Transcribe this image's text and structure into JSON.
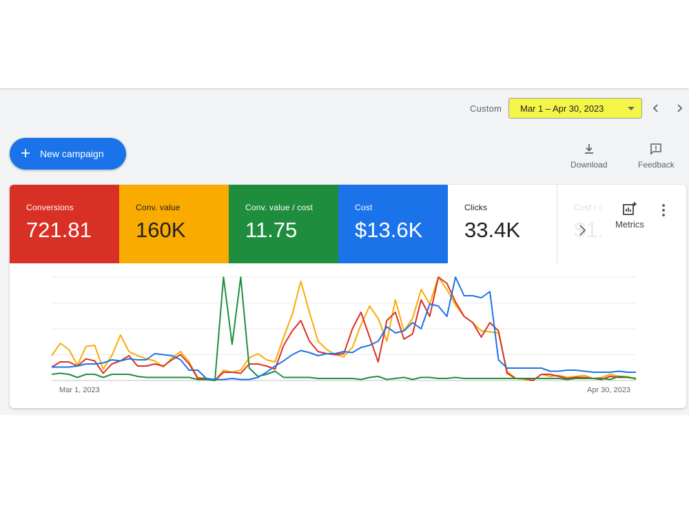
{
  "datebar": {
    "range_type": "Custom",
    "date_range": "Mar 1 – Apr 30, 2023"
  },
  "actions": {
    "new_campaign": "New campaign",
    "download": "Download",
    "feedback": "Feedback"
  },
  "metrics": [
    {
      "label": "Conversions",
      "value": "721.81",
      "color": "#d93025"
    },
    {
      "label": "Conv. value",
      "value": "160K",
      "color": "#f9ab00"
    },
    {
      "label": "Conv. value / cost",
      "value": "11.75",
      "color": "#1e8e3e"
    },
    {
      "label": "Cost",
      "value": "$13.6K",
      "color": "#1a73e8"
    },
    {
      "label": "Clicks",
      "value": "33.4K",
      "color": "#ffffff"
    },
    {
      "label": "Cost / c",
      "value": "$1.",
      "color": "#ffffff"
    }
  ],
  "metrics_button": "Metrics",
  "chart_data": {
    "type": "line",
    "x_start_label": "Mar 1, 2023",
    "x_end_label": "Apr 30, 2023",
    "ylim": [
      0,
      100
    ],
    "grid": true,
    "series": [
      {
        "color": "#f9ab00",
        "values": [
          24,
          36,
          30,
          15,
          33,
          34,
          11,
          24,
          44,
          28,
          24,
          21,
          19,
          13,
          22,
          28,
          18,
          3,
          2,
          0,
          10,
          8,
          10,
          22,
          26,
          20,
          18,
          42,
          64,
          96,
          66,
          38,
          30,
          25,
          23,
          32,
          54,
          72,
          60,
          38,
          78,
          48,
          60,
          88,
          74,
          100,
          88,
          73,
          62,
          56,
          48,
          47,
          46,
          9,
          2,
          1,
          0,
          6,
          4,
          5,
          3,
          4,
          5,
          2,
          3,
          6,
          4,
          4,
          1
        ]
      },
      {
        "color": "#d93025",
        "values": [
          13,
          18,
          18,
          14,
          21,
          19,
          7,
          16,
          19,
          24,
          14,
          14,
          16,
          14,
          20,
          25,
          16,
          2,
          2,
          0,
          8,
          8,
          7,
          16,
          16,
          14,
          11,
          34,
          48,
          58,
          38,
          28,
          26,
          25,
          26,
          50,
          66,
          42,
          18,
          58,
          66,
          40,
          45,
          78,
          62,
          100,
          94,
          76,
          62,
          56,
          42,
          56,
          48,
          7,
          2,
          2,
          0,
          6,
          6,
          4,
          2,
          3,
          3,
          2,
          1,
          4,
          3,
          3,
          2
        ]
      },
      {
        "color": "#1e8e3e",
        "values": [
          6,
          7,
          6,
          3,
          6,
          6,
          3,
          6,
          6,
          6,
          4,
          3,
          3,
          3,
          3,
          3,
          3,
          1,
          1,
          0,
          100,
          35,
          100,
          12,
          4,
          6,
          9,
          3,
          3,
          3,
          3,
          2,
          2,
          2,
          2,
          2,
          1,
          3,
          4,
          1,
          2,
          3,
          1,
          3,
          3,
          2,
          2,
          3,
          2,
          2,
          2,
          2,
          2,
          2,
          2,
          2,
          2,
          2,
          2,
          2,
          1,
          2,
          2,
          2,
          2,
          1,
          4,
          3,
          2
        ]
      },
      {
        "color": "#1a73e8",
        "values": [
          13,
          13,
          13,
          14,
          16,
          16,
          17,
          20,
          19,
          21,
          20,
          20,
          26,
          25,
          24,
          20,
          10,
          10,
          2,
          1,
          1,
          2,
          1,
          1,
          3,
          8,
          14,
          19,
          25,
          29,
          27,
          24,
          26,
          26,
          28,
          27,
          32,
          34,
          38,
          52,
          46,
          48,
          56,
          50,
          74,
          72,
          62,
          100,
          82,
          82,
          80,
          86,
          20,
          12,
          12,
          12,
          12,
          12,
          9,
          9,
          10,
          10,
          9,
          8,
          8,
          8,
          9,
          8,
          8
        ]
      }
    ]
  }
}
